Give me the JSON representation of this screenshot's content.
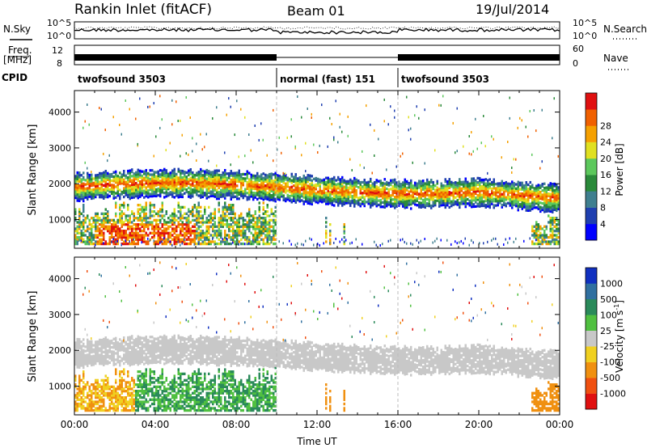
{
  "header": {
    "site": "Rankin Inlet (fitACF)",
    "beam": "Beam 01",
    "date": "19/Jul/2014"
  },
  "status_panels": {
    "left_labels": [
      "N.Sky",
      "Freq.",
      "[MHz]",
      "CPID"
    ],
    "right_labels": [
      "N.Search",
      "Nave"
    ],
    "noise_ticks_left": [
      "10^5",
      "10^0"
    ],
    "noise_ticks_right": [
      "10^5",
      "10^0"
    ],
    "freq_ticks": [
      "12",
      "8"
    ],
    "nave_ticks": [
      "60",
      "0"
    ],
    "cpid_segments": [
      {
        "label": "twofsound 3503",
        "start": 0,
        "end": 10
      },
      {
        "label": "normal (fast) 151",
        "start": 10,
        "end": 16
      },
      {
        "label": "twofsound 3503",
        "start": 16,
        "end": 24
      }
    ]
  },
  "chart_data": [
    {
      "type": "heatmap",
      "panel": "power",
      "ylabel": "Slant Range [km]",
      "xlabel": "",
      "ylim": [
        200,
        4600
      ],
      "xlim": [
        0,
        24
      ],
      "yticks": [
        "1000",
        "2000",
        "3000",
        "4000"
      ],
      "colorbar": {
        "label": "Power [dB]",
        "ticks": [
          "4",
          "8",
          "12",
          "16",
          "20",
          "24",
          "28"
        ],
        "colors": [
          "#0000ff",
          "#1f3fb0",
          "#3f7f8f",
          "#2a8a3a",
          "#5cc85c",
          "#e0e020",
          "#f5a000",
          "#f06000",
          "#e01010"
        ]
      }
    },
    {
      "type": "heatmap",
      "panel": "velocity",
      "ylabel": "Slant Range [km]",
      "xlabel": "Time UT",
      "ylim": [
        200,
        4600
      ],
      "xlim": [
        0,
        24
      ],
      "yticks": [
        "1000",
        "2000",
        "3000",
        "4000"
      ],
      "xticks": [
        "00:00",
        "04:00",
        "08:00",
        "12:00",
        "16:00",
        "20:00",
        "00:00"
      ],
      "colorbar": {
        "label": "Velocity [m s",
        "label_sup": "-1",
        "label_end": "]",
        "ticks": [
          "1000",
          "500",
          "100",
          "25",
          "-25",
          "-100",
          "-500",
          "-1000"
        ],
        "colors": [
          "#1030c0",
          "#3070a0",
          "#2a8a5a",
          "#50c040",
          "#c8c8c8",
          "#f0d020",
          "#f09010",
          "#f05010",
          "#e01010"
        ]
      }
    }
  ]
}
